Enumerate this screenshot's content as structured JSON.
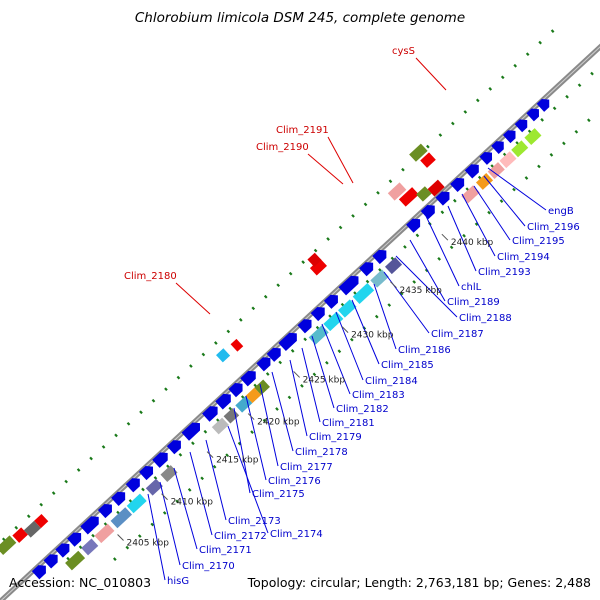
{
  "title": "Chlorobium limicola DSM 245, complete genome",
  "footer": {
    "accession": "Accession: NC_010803",
    "summary": "Topology: circular; Length: 2,763,181 bp; Genes: 2,488"
  },
  "ticks": [
    {
      "label": "2405 kbp"
    },
    {
      "label": "2410 kbp"
    },
    {
      "label": "2415 kbp"
    },
    {
      "label": "2420 kbp"
    },
    {
      "label": "2425 kbp"
    },
    {
      "label": "2430 kbp"
    },
    {
      "label": "2435 kbp"
    },
    {
      "label": "2440 kbp"
    }
  ],
  "outer_labels": [
    {
      "label": "cysS",
      "color": "#cc0000"
    },
    {
      "label": "Clim_2191",
      "color": "#cc0000"
    },
    {
      "label": "Clim_2190",
      "color": "#cc0000"
    },
    {
      "label": "Clim_2180",
      "color": "#cc0000"
    }
  ],
  "inner_labels": [
    {
      "label": "engB"
    },
    {
      "label": "Clim_2196"
    },
    {
      "label": "Clim_2195"
    },
    {
      "label": "Clim_2194"
    },
    {
      "label": "Clim_2193"
    },
    {
      "label": "chlL"
    },
    {
      "label": "Clim_2189"
    },
    {
      "label": "Clim_2188"
    },
    {
      "label": "Clim_2187"
    },
    {
      "label": "Clim_2186"
    },
    {
      "label": "Clim_2185"
    },
    {
      "label": "Clim_2184"
    },
    {
      "label": "Clim_2183"
    },
    {
      "label": "Clim_2182"
    },
    {
      "label": "Clim_2181"
    },
    {
      "label": "Clim_2179"
    },
    {
      "label": "Clim_2178"
    },
    {
      "label": "Clim_2177"
    },
    {
      "label": "Clim_2176"
    },
    {
      "label": "Clim_2175"
    },
    {
      "label": "Clim_2173"
    },
    {
      "label": "Clim_2174"
    },
    {
      "label": "Clim_2172"
    },
    {
      "label": "Clim_2171"
    },
    {
      "label": "Clim_2170"
    },
    {
      "label": "hisG"
    }
  ],
  "colors": {
    "backbone": "#777777",
    "cds": "#0000dd",
    "label_inner": "#0000cc",
    "label_outer": "#cc0000",
    "dots": "#1a7a1a",
    "trna": "#ee0000",
    "rrna": "#6b8e23",
    "cyan": "#22d5ee",
    "gray": "#888888",
    "pink": "#f0a0a0",
    "orange": "#f59a1a",
    "lime": "#9de830"
  }
}
